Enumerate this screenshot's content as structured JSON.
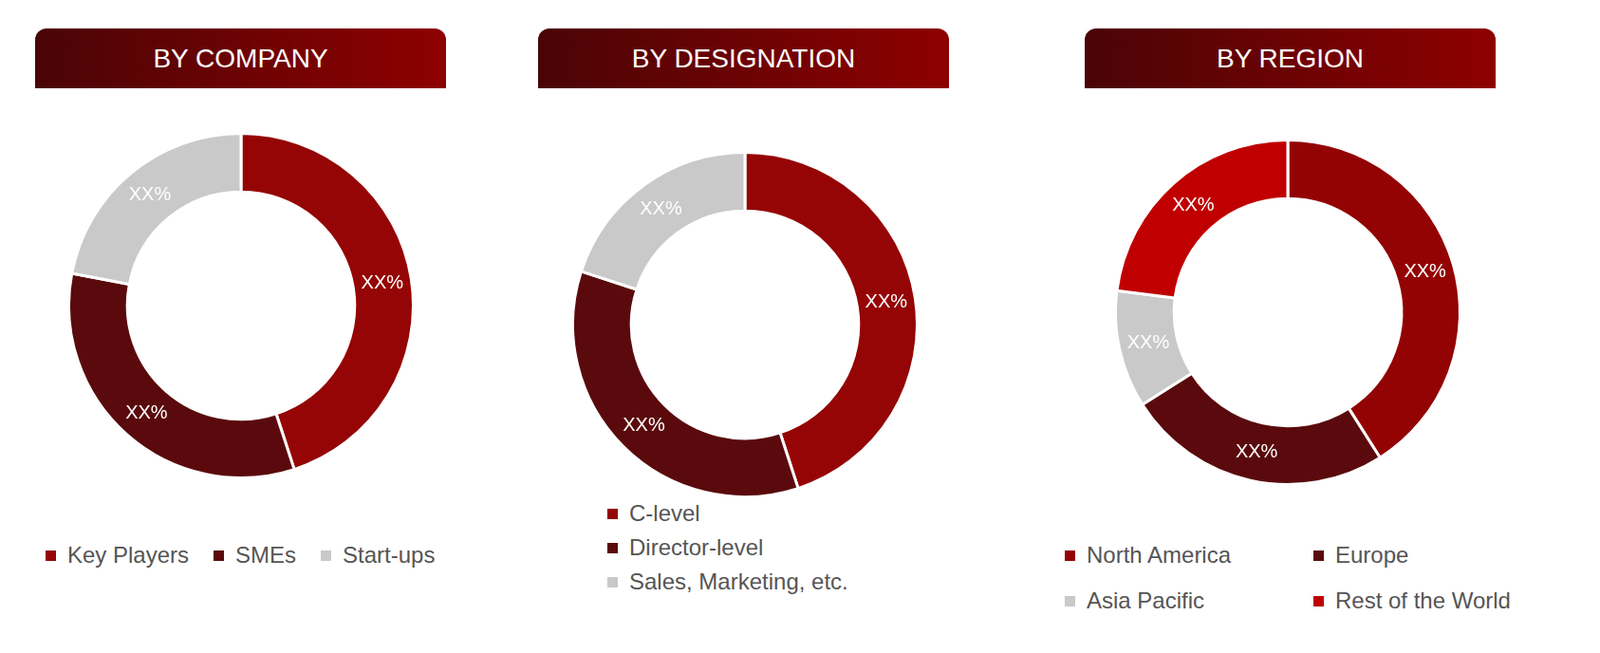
{
  "chart_data": [
    {
      "type": "doughnut",
      "title": "BY COMPANY",
      "categories": [
        "Key Players",
        "SMEs",
        "Start-ups"
      ],
      "values": [
        45,
        33,
        22
      ],
      "value_labels": [
        "XX%",
        "XX%",
        "XX%"
      ],
      "colors": [
        "#950505",
        "#5a0a0c",
        "#c9c9c9"
      ],
      "data_labels": true,
      "legend": "bottom"
    },
    {
      "type": "doughnut",
      "title": "BY DESIGNATION",
      "categories": [
        "C-level",
        "Director-level",
        "Sales, Marketing, etc."
      ],
      "values": [
        45,
        35,
        20
      ],
      "value_labels": [
        "XX%",
        "XX%",
        "XX%"
      ],
      "colors": [
        "#950505",
        "#5a0a0c",
        "#c9c9c9"
      ],
      "data_labels": true,
      "legend": "bottom"
    },
    {
      "type": "doughnut",
      "title": "BY REGION",
      "categories": [
        "North America",
        "Europe",
        "Asia Pacific",
        "Rest of the World"
      ],
      "values": [
        41,
        25,
        11,
        23
      ],
      "value_labels": [
        "XX%",
        "XX%",
        "XX%",
        "XX%"
      ],
      "colors": [
        "#930303",
        "#5a0a0c",
        "#c9c9c9",
        "#c00000"
      ],
      "data_labels": true,
      "legend": "bottom"
    }
  ]
}
